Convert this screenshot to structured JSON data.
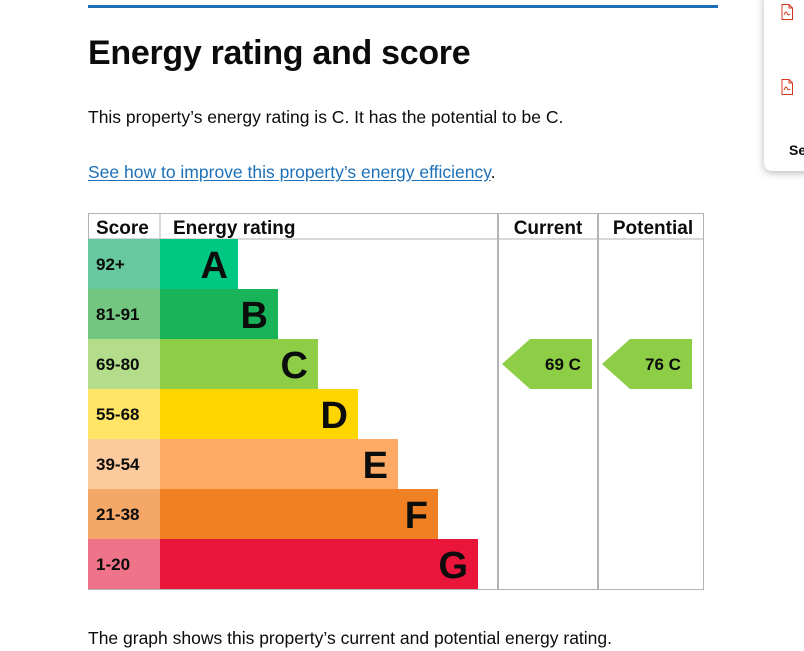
{
  "page": {
    "title": "Energy rating and score",
    "intro": "This property’s energy rating is C. It has the potential to be C.",
    "link_text": "See how to improve this property’s energy efficiency",
    "link_suffix": ".",
    "footer_text": "The graph shows this property’s current and potential energy rating."
  },
  "side_panel": {
    "text": "Se",
    "icons": [
      "pdf-file-icon",
      "pdf-file-icon"
    ]
  },
  "colors": {
    "accent": "#1d70b8",
    "rating_bands": [
      "#00c781",
      "#19b459",
      "#8dce46",
      "#ffd500",
      "#fcaa65",
      "#ef8023",
      "#e9153b"
    ],
    "score_cells": [
      "#67c8a0",
      "#73c67f",
      "#b3dd8a",
      "#ffe466",
      "#fdca9e",
      "#f4a767",
      "#f07489"
    ]
  },
  "chart_data": {
    "type": "table",
    "headers": {
      "score": "Score",
      "rating": "Energy rating",
      "current": "Current",
      "potential": "Potential"
    },
    "bands": [
      {
        "score": "92+",
        "letter": "A"
      },
      {
        "score": "81-91",
        "letter": "B"
      },
      {
        "score": "69-80",
        "letter": "C"
      },
      {
        "score": "55-68",
        "letter": "D"
      },
      {
        "score": "39-54",
        "letter": "E"
      },
      {
        "score": "21-38",
        "letter": "F"
      },
      {
        "score": "1-20",
        "letter": "G"
      }
    ],
    "current": {
      "score": 69,
      "rating": "C",
      "label": "69  C"
    },
    "potential": {
      "score": 76,
      "rating": "C",
      "label": "76  C"
    }
  }
}
